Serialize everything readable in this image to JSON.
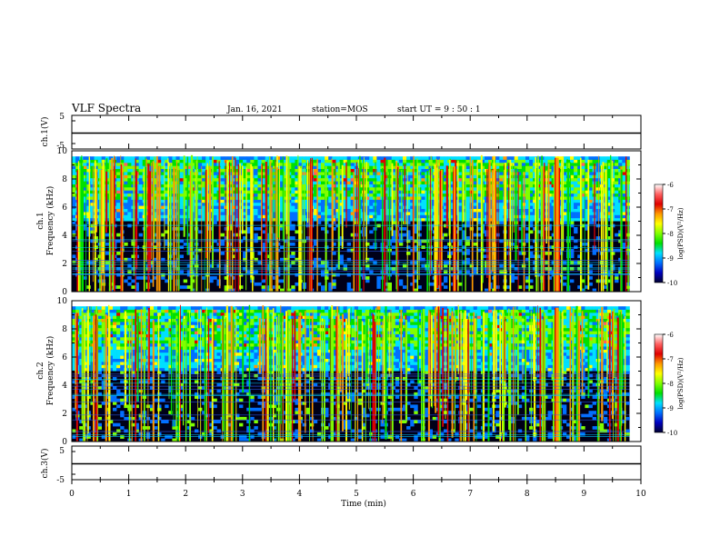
{
  "header": {
    "title": "VLF Spectra",
    "date": "Jan. 16, 2021",
    "station": "station=MOS",
    "start_ut": "start UT =  9 : 50 : 1"
  },
  "chart_data": [
    {
      "type": "line",
      "name": "ch.1 waveform",
      "ylabel": "ch.1(V)",
      "ylim": [
        -5,
        5
      ],
      "yticks": [
        "5",
        "-5"
      ],
      "x": [
        0,
        10
      ],
      "values": [
        0,
        0
      ]
    },
    {
      "type": "heatmap",
      "name": "ch.1 spectrogram",
      "ylabel": "ch.1\nFrequency (kHz)",
      "ylabel_lines": [
        "ch.1",
        "Frequency (kHz)"
      ],
      "xlim": [
        0,
        10
      ],
      "ylim": [
        0,
        10
      ],
      "yticks": [
        "0",
        "2",
        "4",
        "6",
        "8",
        "10"
      ],
      "data_extent_x": [
        0,
        9.8
      ],
      "colorbar": {
        "label": "log(PSD)(V²/Hz)",
        "range": [
          -10,
          -6
        ],
        "ticks": [
          "-6",
          "-7",
          "-8",
          "-9",
          "-10"
        ]
      },
      "strong_vertical_band_min": 8.5
    },
    {
      "type": "heatmap",
      "name": "ch.2 spectrogram",
      "ylabel": "ch.2\nFrequency (kHz)",
      "ylabel_lines": [
        "ch.2",
        "Frequency (kHz)"
      ],
      "xlim": [
        0,
        10
      ],
      "ylim": [
        0,
        10
      ],
      "yticks": [
        "0",
        "2",
        "4",
        "6",
        "8",
        "10"
      ],
      "data_extent_x": [
        0,
        9.8
      ],
      "colorbar": {
        "label": "log(PSD)(V²/Hz)",
        "range": [
          -10,
          -6
        ],
        "ticks": [
          "-6",
          "-7",
          "-8",
          "-9",
          "-10"
        ]
      },
      "strong_vertical_band_min": 8.5
    },
    {
      "type": "line",
      "name": "ch.3 waveform",
      "ylabel": "ch.3(V)",
      "ylim": [
        -5,
        5
      ],
      "yticks": [
        "5",
        "-5"
      ],
      "x": [
        0,
        10
      ],
      "values": [
        0,
        0
      ]
    }
  ],
  "xaxis": {
    "label": "Time (min)",
    "range": [
      0,
      10
    ],
    "ticks": [
      "0",
      "1",
      "2",
      "3",
      "4",
      "5",
      "6",
      "7",
      "8",
      "9",
      "10"
    ]
  },
  "colormap": [
    "#ffffff",
    "#ff6060",
    "#e00000",
    "#ff9900",
    "#ffff00",
    "#80ff00",
    "#00e000",
    "#00e0ff",
    "#0070ff",
    "#0000c0",
    "#000030"
  ]
}
